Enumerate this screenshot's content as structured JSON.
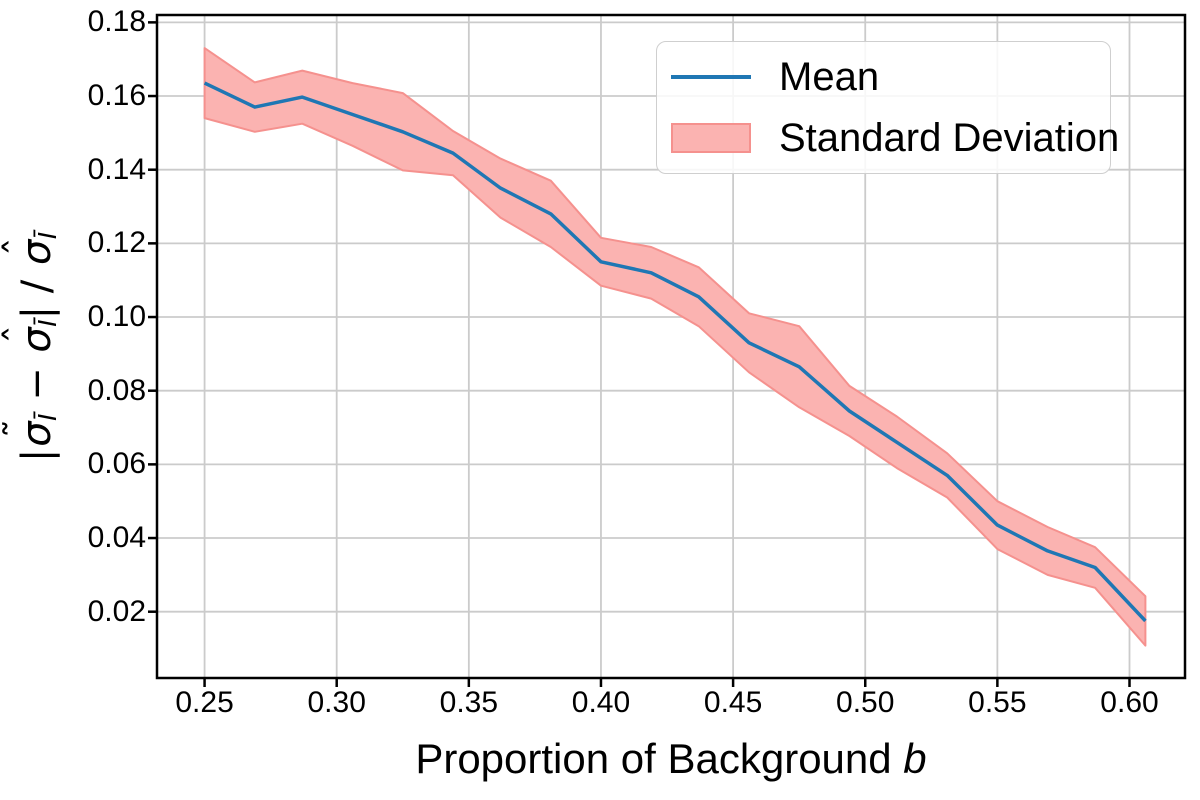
{
  "axes": {
    "xlabel": {
      "text": "Proportion of Background ",
      "var": "b"
    },
    "ylabel": {
      "bar": "|",
      "sigma": "σ",
      "tilde": "˜",
      "hat": "ˆ",
      "sub": "Ī",
      "minus": " − ",
      "slash": " / "
    }
  },
  "legend": {
    "entries": [
      {
        "label": "Mean",
        "type": "line"
      },
      {
        "label": "Standard Deviation",
        "type": "patch"
      }
    ]
  },
  "chart_data": {
    "type": "line",
    "title": "",
    "xlabel": "Proportion of Background b",
    "ylabel": "|σ̃_Ī − σ̂_Ī| / σ̂_Ī",
    "x": [
      0.25,
      0.269,
      0.287,
      0.306,
      0.325,
      0.344,
      0.362,
      0.381,
      0.4,
      0.419,
      0.437,
      0.456,
      0.475,
      0.494,
      0.512,
      0.531,
      0.55,
      0.569,
      0.587,
      0.606
    ],
    "series": [
      {
        "name": "Mean",
        "values": [
          0.1635,
          0.157,
          0.1597,
          0.155,
          0.1503,
          0.1445,
          0.135,
          0.128,
          0.115,
          0.112,
          0.1055,
          0.093,
          0.0865,
          0.0745,
          0.066,
          0.057,
          0.0435,
          0.0365,
          0.032,
          0.0175
        ]
      }
    ],
    "std": [
      0.0095,
      0.0067,
      0.0072,
      0.0085,
      0.0105,
      0.006,
      0.008,
      0.009,
      0.0065,
      0.007,
      0.008,
      0.008,
      0.011,
      0.0068,
      0.007,
      0.006,
      0.0065,
      0.0065,
      0.0055,
      0.0067
    ],
    "x_ticks": [
      0.25,
      0.3,
      0.35,
      0.4,
      0.45,
      0.5,
      0.55,
      0.6
    ],
    "x_tick_labels": [
      "0.25",
      "0.30",
      "0.35",
      "0.40",
      "0.45",
      "0.50",
      "0.55",
      "0.60"
    ],
    "y_ticks": [
      0.02,
      0.04,
      0.06,
      0.08,
      0.1,
      0.12,
      0.14,
      0.16,
      0.18
    ],
    "y_tick_labels": [
      "0.02",
      "0.04",
      "0.06",
      "0.08",
      "0.10",
      "0.12",
      "0.14",
      "0.16",
      "0.18"
    ],
    "xlim": [
      0.232,
      0.621
    ],
    "ylim": [
      0.002,
      0.182
    ],
    "grid": true,
    "legend_position": "upper right",
    "legend_entries": [
      "Mean",
      "Standard Deviation"
    ],
    "colors": {
      "mean_line": "#1f77b4",
      "band_fill": "#fbb3b1",
      "band_edge": "#f5918e",
      "grid": "#cbcbcb",
      "frame": "#000000"
    }
  }
}
